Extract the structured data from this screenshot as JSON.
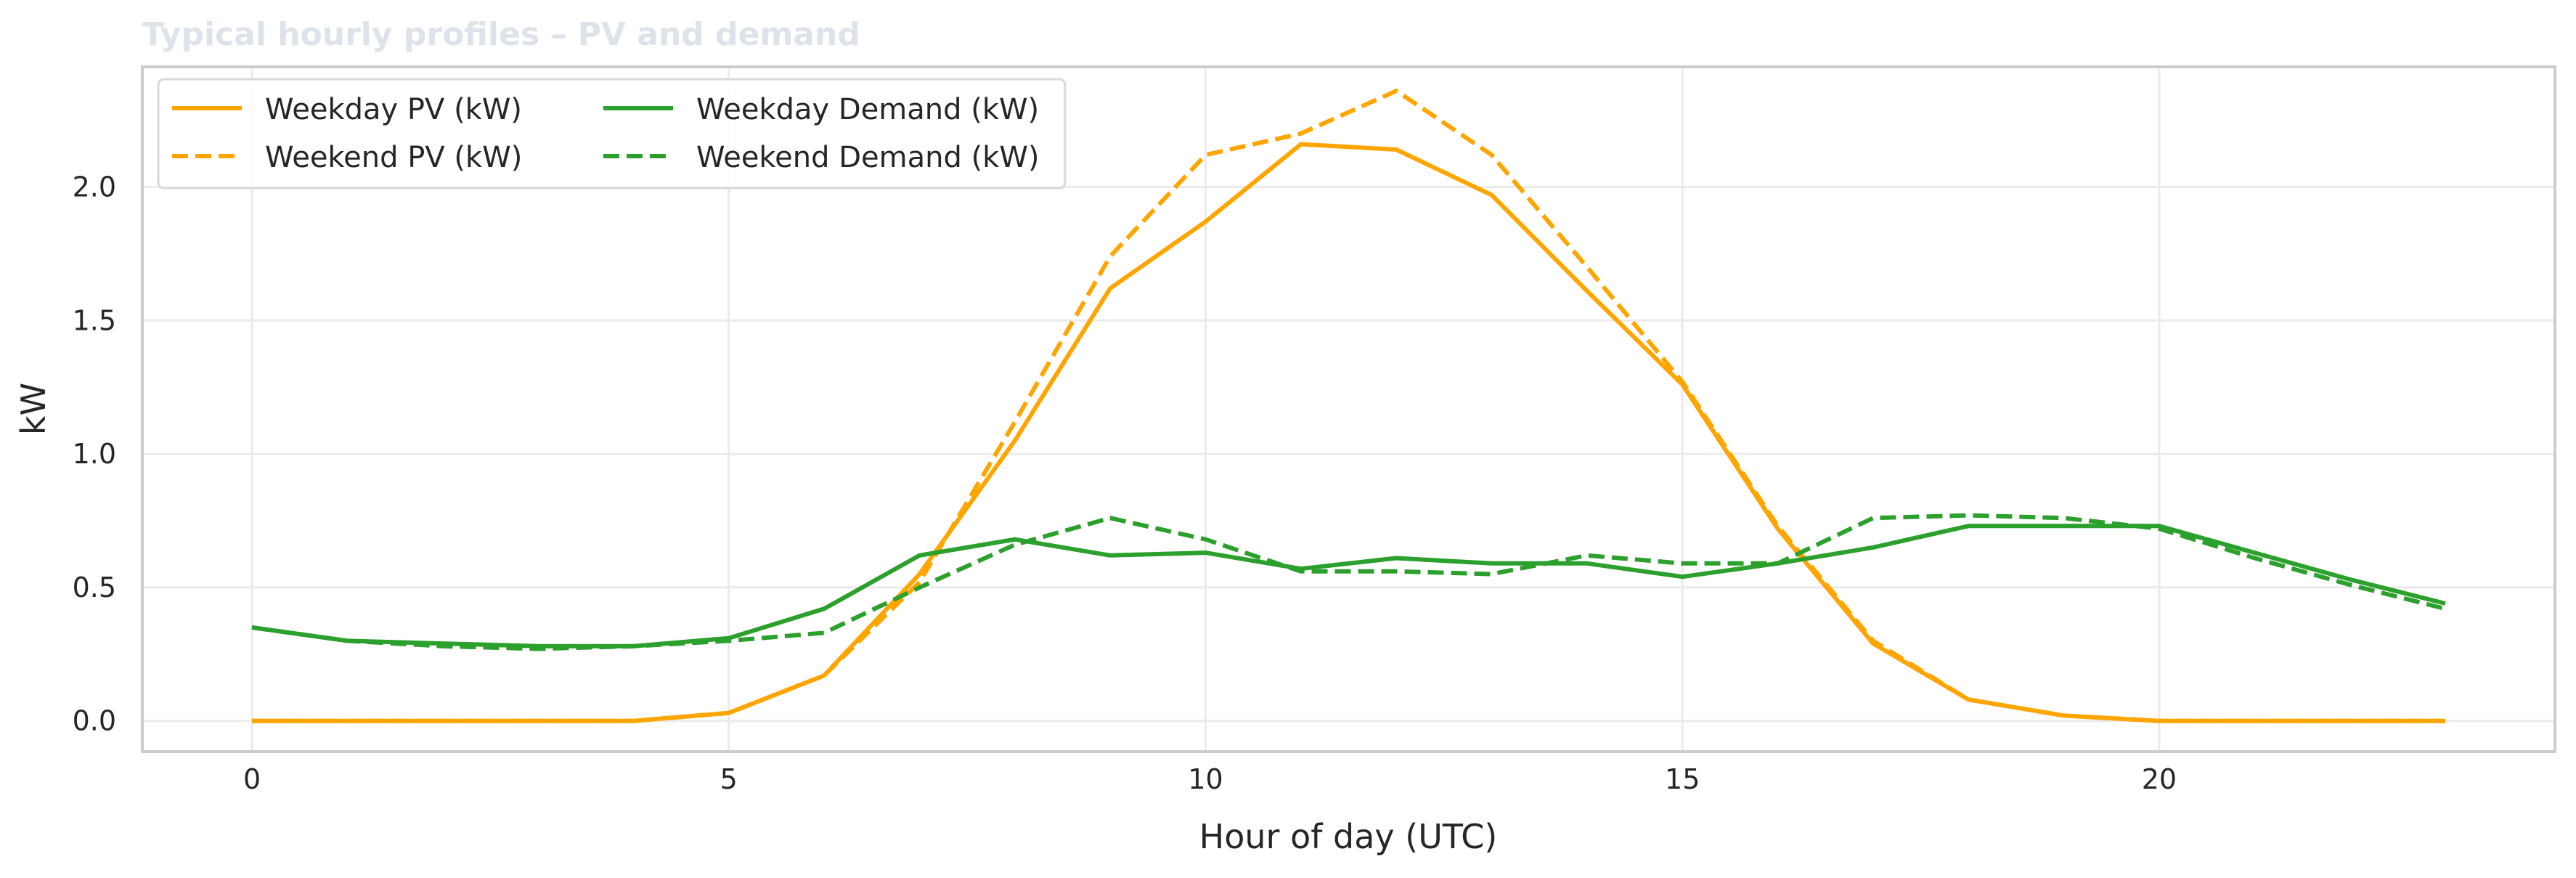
{
  "chart_data": {
    "type": "line",
    "title": "Typical hourly profiles – PV and demand",
    "xlabel": "Hour of day (UTC)",
    "ylabel": "kW",
    "xlim": [
      -1.15,
      24.15
    ],
    "ylim": [
      -0.115,
      2.45
    ],
    "xticks": [
      0,
      5,
      10,
      15,
      20
    ],
    "yticks": [
      0.0,
      0.5,
      1.0,
      1.5,
      2.0
    ],
    "xtick_labels": [
      "0",
      "5",
      "10",
      "15",
      "20"
    ],
    "ytick_labels": [
      "0.0",
      "0.5",
      "1.0",
      "1.5",
      "2.0"
    ],
    "grid": true,
    "legend_position": "top-left",
    "x": [
      0,
      1,
      2,
      3,
      4,
      5,
      6,
      7,
      8,
      9,
      10,
      11,
      12,
      13,
      14,
      15,
      16,
      17,
      18,
      19,
      20,
      21,
      22,
      23
    ],
    "series": [
      {
        "name": "Weekday PV (kW)",
        "color": "#ffa500",
        "dash": "solid",
        "values": [
          0,
          0,
          0,
          0,
          0,
          0.03,
          0.17,
          0.55,
          1.05,
          1.62,
          1.87,
          2.16,
          2.14,
          1.97,
          1.61,
          1.26,
          0.72,
          0.29,
          0.08,
          0.02,
          0,
          0,
          0,
          0
        ]
      },
      {
        "name": "Weekend PV (kW)",
        "color": "#ffa500",
        "dash": "dashed",
        "values": [
          0,
          0,
          0,
          0,
          0,
          0.03,
          0.17,
          0.52,
          1.12,
          1.74,
          2.12,
          2.2,
          2.36,
          2.12,
          1.7,
          1.27,
          0.73,
          0.3,
          0.08,
          0.02,
          0,
          0,
          0,
          0
        ]
      },
      {
        "name": "Weekday Demand (kW)",
        "color": "#2ca02c",
        "dash": "solid",
        "values": [
          0.35,
          0.3,
          0.29,
          0.28,
          0.28,
          0.31,
          0.42,
          0.62,
          0.68,
          0.62,
          0.63,
          0.57,
          0.61,
          0.59,
          0.59,
          0.54,
          0.59,
          0.65,
          0.73,
          0.73,
          0.73,
          0.63,
          0.53,
          0.44
        ]
      },
      {
        "name": "Weekend Demand (kW)",
        "color": "#2ca02c",
        "dash": "dashed",
        "values": [
          0.35,
          0.3,
          0.28,
          0.27,
          0.28,
          0.3,
          0.33,
          0.5,
          0.66,
          0.76,
          0.68,
          0.56,
          0.56,
          0.55,
          0.62,
          0.59,
          0.59,
          0.76,
          0.77,
          0.76,
          0.72,
          0.61,
          0.51,
          0.42
        ]
      }
    ]
  }
}
